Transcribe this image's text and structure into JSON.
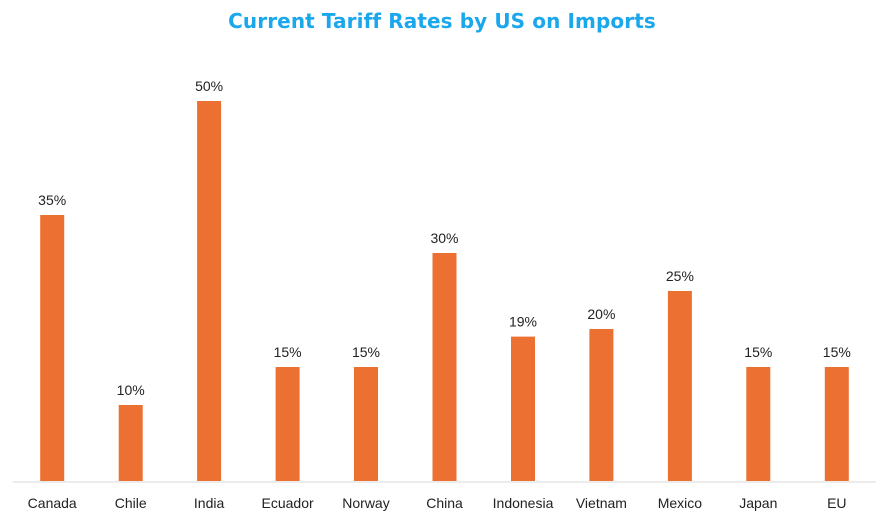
{
  "chart_data": {
    "type": "bar",
    "title": "Current Tariff Rates by US on Imports",
    "categories": [
      "Canada",
      "Chile",
      "India",
      "Ecuador",
      "Norway",
      "China",
      "Indonesia",
      "Vietnam",
      "Mexico",
      "Japan",
      "EU"
    ],
    "values": [
      35,
      10,
      50,
      15,
      15,
      30,
      19,
      20,
      25,
      15,
      15
    ],
    "value_labels": [
      "35%",
      "10%",
      "50%",
      "15%",
      "15%",
      "30%",
      "19%",
      "20%",
      "25%",
      "15%",
      "15%"
    ],
    "unit": "%",
    "ylim": [
      0,
      50
    ],
    "grid": false,
    "bar_color": "#ed7033",
    "title_color": "#1aa7ec"
  }
}
